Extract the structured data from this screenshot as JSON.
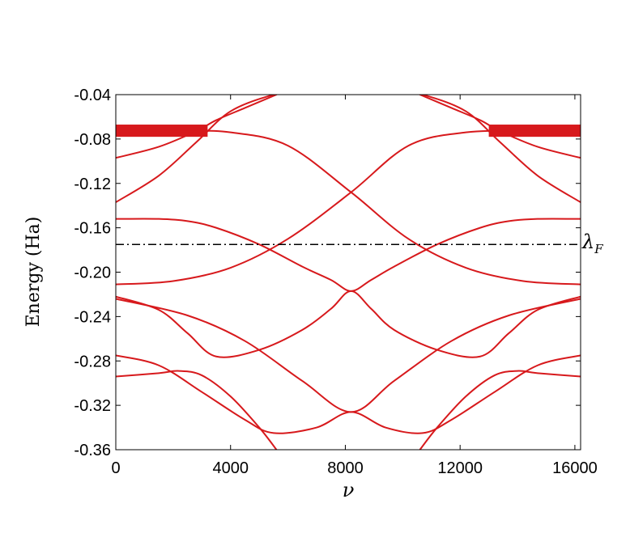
{
  "chart_data": {
    "type": "line",
    "title": "",
    "xlabel": "ν",
    "ylabel": "Energy (Ha)",
    "xlim": [
      0,
      16200
    ],
    "ylim": [
      -0.36,
      -0.04
    ],
    "xticks": [
      0,
      4000,
      8000,
      12000,
      16000
    ],
    "xtick_labels": [
      "0",
      "4000",
      "8000",
      "12000",
      "16000"
    ],
    "yticks": [
      -0.04,
      -0.08,
      -0.12,
      -0.16,
      -0.2,
      -0.24,
      -0.28,
      -0.32,
      -0.36
    ],
    "ytick_labels": [
      "-0.04",
      "-0.08",
      "-0.12",
      "-0.16",
      "-0.20",
      "-0.24",
      "-0.28",
      "-0.32",
      "-0.36"
    ],
    "grid": false,
    "legend": "none",
    "colors": {
      "bands": "#d7191c",
      "fermi": "#000000"
    },
    "fermi_level": {
      "label": "λF",
      "y": -0.175,
      "style": "dash-dot"
    },
    "band_lines": [
      {
        "x": [
          0,
          2500,
          4000,
          6000,
          8200,
          10200,
          12200,
          14200,
          16200
        ],
        "y": [
          -0.075,
          -0.073,
          -0.074,
          -0.086,
          -0.128,
          -0.17,
          -0.196,
          -0.208,
          -0.211
        ]
      },
      {
        "x": [
          0,
          2000,
          4000,
          6000,
          8200,
          10200,
          12200,
          14200,
          16200
        ],
        "y": [
          -0.211,
          -0.208,
          -0.196,
          -0.17,
          -0.128,
          -0.086,
          -0.074,
          -0.073,
          -0.075
        ]
      },
      {
        "x": [
          0,
          1500,
          2800,
          4000,
          5500,
          6500
        ],
        "y": [
          -0.137,
          -0.113,
          -0.083,
          -0.055,
          -0.04,
          -0.036
        ]
      },
      {
        "x": [
          9700,
          10700,
          12200,
          13400,
          14700,
          16200
        ],
        "y": [
          -0.036,
          -0.04,
          -0.055,
          -0.083,
          -0.113,
          -0.137
        ]
      },
      {
        "x": [
          0,
          1500,
          2800,
          3500,
          4500,
          5600
        ],
        "y": [
          -0.097,
          -0.087,
          -0.073,
          -0.063,
          -0.052,
          -0.04
        ]
      },
      {
        "x": [
          10600,
          11700,
          12700,
          13400,
          14700,
          16200
        ],
        "y": [
          -0.04,
          -0.052,
          -0.063,
          -0.073,
          -0.087,
          -0.097
        ]
      },
      {
        "x": [
          0,
          1500,
          2500,
          3500,
          5000,
          6500,
          7500,
          8200,
          8900,
          9700,
          11200,
          12700,
          13700,
          14700,
          16200
        ],
        "y": [
          -0.152,
          -0.152,
          -0.154,
          -0.16,
          -0.175,
          -0.195,
          -0.207,
          -0.217,
          -0.207,
          -0.195,
          -0.175,
          -0.16,
          -0.154,
          -0.152,
          -0.152
        ]
      },
      {
        "x": [
          0,
          1500,
          2500,
          3500,
          5000,
          6500,
          7500,
          8200,
          8900,
          9700,
          11200,
          12700,
          13700,
          14700,
          16200
        ],
        "y": [
          -0.222,
          -0.234,
          -0.255,
          -0.276,
          -0.27,
          -0.252,
          -0.233,
          -0.217,
          -0.233,
          -0.252,
          -0.27,
          -0.276,
          -0.255,
          -0.234,
          -0.222
        ]
      },
      {
        "x": [
          0,
          2500,
          4500,
          6500,
          8200,
          9700,
          11700,
          13700,
          16200
        ],
        "y": [
          -0.224,
          -0.239,
          -0.262,
          -0.298,
          -0.326,
          -0.298,
          -0.262,
          -0.239,
          -0.224
        ]
      },
      {
        "x": [
          0,
          1500,
          3000,
          4500,
          5500,
          7000,
          8200,
          9400,
          10700,
          11700,
          13200,
          14700,
          16200
        ],
        "y": [
          -0.275,
          -0.284,
          -0.308,
          -0.333,
          -0.345,
          -0.34,
          -0.326,
          -0.34,
          -0.345,
          -0.333,
          -0.308,
          -0.284,
          -0.275
        ]
      },
      {
        "x": [
          0,
          1500,
          2200,
          3000,
          4000,
          5000,
          5600
        ],
        "y": [
          -0.294,
          -0.291,
          -0.289,
          -0.293,
          -0.312,
          -0.34,
          -0.36
        ]
      },
      {
        "x": [
          10600,
          11200,
          12200,
          13200,
          14000,
          14700,
          16200
        ],
        "y": [
          -0.36,
          -0.34,
          -0.312,
          -0.293,
          -0.289,
          -0.291,
          -0.294
        ]
      }
    ],
    "dense_bands": [
      {
        "x0": 0,
        "x1": 3200,
        "y_top": -0.067,
        "y_bottom": -0.078
      },
      {
        "x0": 13000,
        "x1": 16200,
        "y_top": -0.067,
        "y_bottom": -0.078
      }
    ]
  }
}
